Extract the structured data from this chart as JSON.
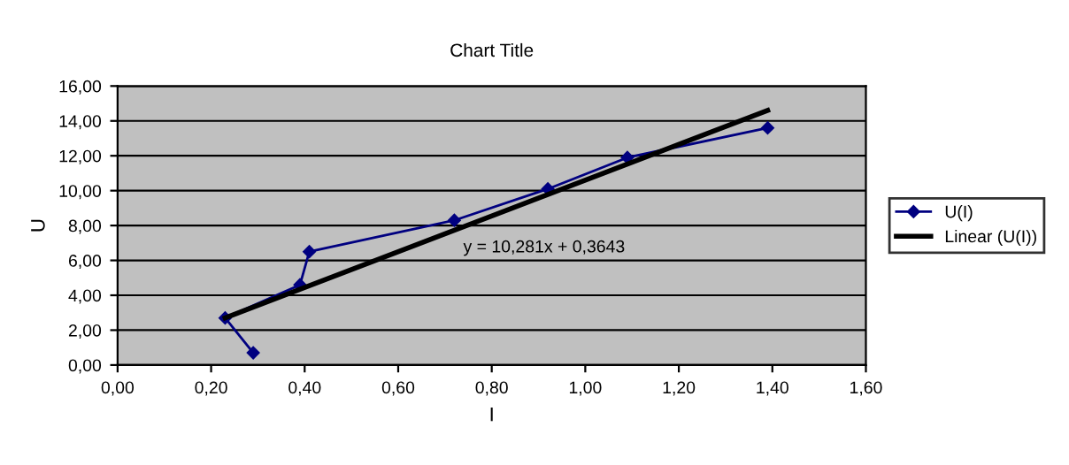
{
  "chart_data": {
    "type": "line",
    "title": "Chart Title",
    "xlabel": "I",
    "ylabel": "U",
    "series": [
      {
        "name": "U(I)",
        "color": "#000080",
        "marker": "diamond",
        "x": [
          0.29,
          0.23,
          0.39,
          0.41,
          0.72,
          0.92,
          1.09,
          1.39
        ],
        "values": [
          0.7,
          2.7,
          4.6,
          6.5,
          8.3,
          10.1,
          11.9,
          13.6
        ]
      },
      {
        "name": "Linear (U(I))",
        "color": "#000000",
        "marker": "none",
        "x": [
          0.23,
          1.39
        ],
        "values": [
          2.7,
          14.6
        ]
      }
    ],
    "annotations": [
      "y = 10,281x + 0,3643"
    ],
    "xlim": [
      0,
      1.6
    ],
    "ylim": [
      0,
      16
    ],
    "xticks": [
      {
        "value": 0,
        "label": "0,00"
      },
      {
        "value": 0.2,
        "label": "0,20"
      },
      {
        "value": 0.4,
        "label": "0,40"
      },
      {
        "value": 0.6,
        "label": "0,60"
      },
      {
        "value": 0.8,
        "label": "0,80"
      },
      {
        "value": 1.0,
        "label": "1,00"
      },
      {
        "value": 1.2,
        "label": "1,20"
      },
      {
        "value": 1.4,
        "label": "1,40"
      },
      {
        "value": 1.6,
        "label": "1,60"
      }
    ],
    "yticks": [
      {
        "value": 0,
        "label": "0,00"
      },
      {
        "value": 2,
        "label": "2,00"
      },
      {
        "value": 4,
        "label": "4,00"
      },
      {
        "value": 6,
        "label": "6,00"
      },
      {
        "value": 8,
        "label": "8,00"
      },
      {
        "value": 10,
        "label": "10,00"
      },
      {
        "value": 12,
        "label": "12,00"
      },
      {
        "value": 14,
        "label": "14,00"
      },
      {
        "value": 16,
        "label": "16,00"
      }
    ],
    "grid": "y",
    "legend": "right"
  }
}
